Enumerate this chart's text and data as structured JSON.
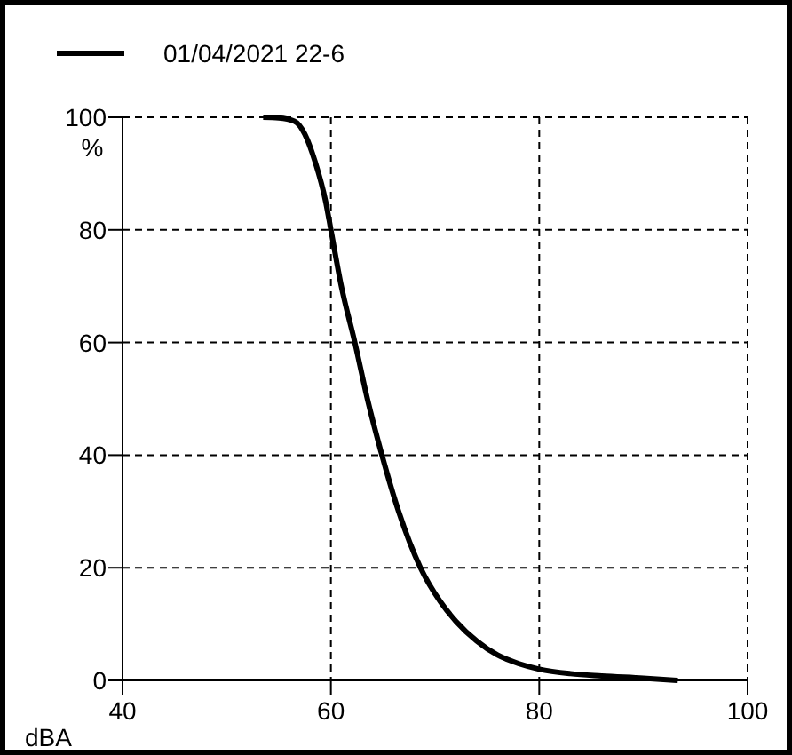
{
  "chart_data": {
    "type": "line",
    "xlabel": "dBA",
    "ylabel": "%",
    "xlim": [
      40,
      100
    ],
    "ylim": [
      0,
      100
    ],
    "xticks": [
      40,
      60,
      80,
      100
    ],
    "yticks": [
      0,
      20,
      40,
      60,
      80,
      100
    ],
    "grid": true,
    "legend": "top left",
    "line_style": "solid",
    "marker": "none",
    "series": [
      {
        "name": "01/04/2021 22-6",
        "color": "#000000",
        "x": [
          53.5,
          55,
          56.5,
          57.5,
          58.5,
          59.5,
          60,
          61,
          62.3,
          63.5,
          64.9,
          66.5,
          68.6,
          70.5,
          72,
          74,
          76,
          78,
          80,
          83,
          86,
          90,
          93.3
        ],
        "values": [
          100,
          99.9,
          99.3,
          97,
          92,
          85,
          80,
          70,
          60,
          50,
          40,
          30,
          20,
          14,
          10.5,
          7,
          4.5,
          3,
          2,
          1.2,
          0.8,
          0.4,
          0
        ]
      }
    ]
  }
}
